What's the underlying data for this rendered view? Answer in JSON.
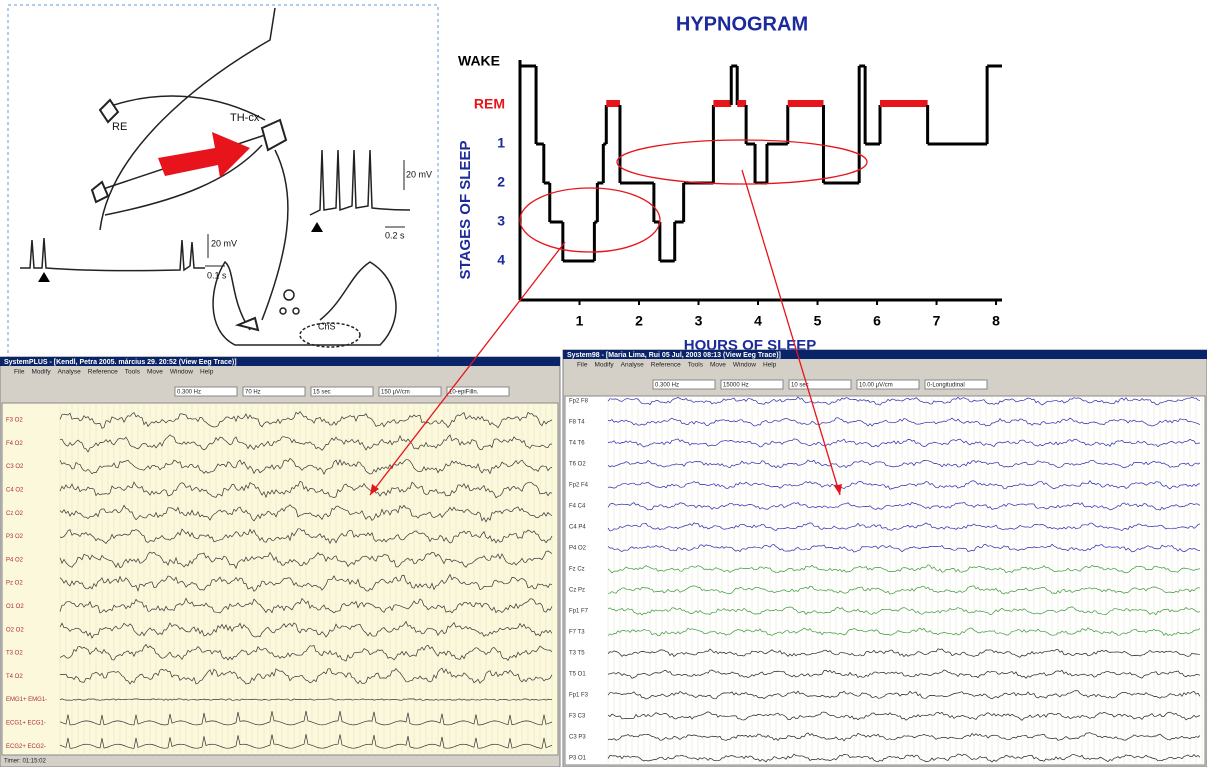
{
  "diagram": {
    "labels": [
      "RE",
      "TH-cx",
      "20 mV",
      "0.1 s",
      "20 mV",
      "0.2 s",
      "ChS"
    ]
  },
  "chart_data": {
    "type": "step",
    "title": "HYPNOGRAM",
    "xlabel": "HOURS OF SLEEP",
    "ylabel": "STAGES OF SLEEP",
    "x": [
      0,
      0.27,
      0.4,
      0.5,
      0.72,
      1.25,
      1.3,
      1.4,
      1.45,
      1.68,
      2.25,
      2.35,
      2.6,
      2.75,
      3.25,
      3.55,
      3.65,
      3.8,
      3.95,
      4.15,
      4.5,
      5.1,
      5.7,
      5.8,
      6.05,
      6.85,
      7.85
    ],
    "values": [
      0,
      2,
      3,
      4,
      5,
      4,
      3,
      2,
      1,
      3,
      4,
      5,
      4,
      3,
      1,
      0,
      1,
      2,
      3,
      2,
      1,
      3,
      0,
      2,
      1,
      2,
      0
    ],
    "color": "#000000",
    "rem_color": "#e8141b",
    "label_color": "#1b2a9c",
    "xlim": [
      0,
      8.1
    ],
    "xticks": [
      1,
      2,
      3,
      4,
      5,
      6,
      7,
      8
    ],
    "ylim": [
      6,
      0
    ],
    "yticks": [
      {
        "value": 0,
        "label": "WAKE"
      },
      {
        "value": 1,
        "label": "REM"
      },
      {
        "value": 2,
        "label": "1"
      },
      {
        "value": 3,
        "label": "2"
      },
      {
        "value": 4,
        "label": "3"
      },
      {
        "value": 5,
        "label": "4"
      }
    ]
  },
  "eeg_left": {
    "title": "SystemPLUS - [Kendl, Petra 2005. március 29. 20:52 (View Eeg Trace)]",
    "menu": [
      "File",
      "Modify",
      "Analyse",
      "Reference",
      "Tools",
      "Move",
      "Window",
      "Help"
    ],
    "toolbar": [
      "0.300 Hz",
      "70 Hz",
      "15 sec",
      "150 µV/cm",
      "10-epiFilln."
    ],
    "channels": [
      "F3 O2",
      "F4 O2",
      "C3 O2",
      "C4 O2",
      "Cz O2",
      "P3 O2",
      "P4 O2",
      "Pz O2",
      "O1 O2",
      "O2 O2",
      "T3 O2",
      "T4 O2",
      "EMG1+ EMG1-",
      "ECG1+ ECG1-",
      "ECG2+ ECG2-"
    ],
    "status": "Timer: 01:15:02"
  },
  "eeg_right": {
    "title": "System98 - [Maria Lima, Rui 05 Jul, 2003 08:13 (View Eeg Trace)]",
    "menu": [
      "File",
      "Modify",
      "Analyse",
      "Reference",
      "Tools",
      "Move",
      "Window",
      "Help"
    ],
    "toolbar": [
      "0.300 Hz",
      "15000 Hz",
      "10 sec",
      "10.00 µV/cm",
      "0-Longitudinal"
    ],
    "channels": [
      "Fp2 F8",
      "F8 T4",
      "T4 T6",
      "T6 O2",
      "Fp2 F4",
      "F4 C4",
      "C4 P4",
      "P4 O2",
      "Fz Cz",
      "Cz Pz",
      "Fp1 F7",
      "F7 T3",
      "T3 T5",
      "T5 O1",
      "Fp1 F3",
      "F3 C3",
      "C3 P3",
      "P3 O1"
    ],
    "channel_colors": [
      "#2a2ab0",
      "#2a2ab0",
      "#2a2ab0",
      "#2a2ab0",
      "#2a2ab0",
      "#2a2ab0",
      "#2a2ab0",
      "#2a2ab0",
      "#3a9a3a",
      "#3a9a3a",
      "#3a9a3a",
      "#3a9a3a",
      "#222222",
      "#222222",
      "#222222",
      "#222222",
      "#222222",
      "#222222"
    ]
  }
}
